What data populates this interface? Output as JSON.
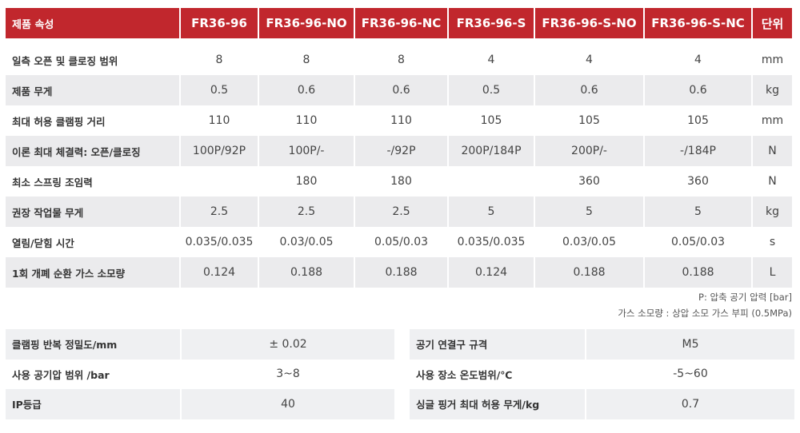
{
  "header": [
    "제품 속성",
    "FR36-96",
    "FR36-96-NO",
    "FR36-96-NC",
    "FR36-96-S",
    "FR36-96-S-NO",
    "FR36-96-S-NC",
    "단위"
  ],
  "rows": [
    [
      "일측 오픈 및 클로징 범위",
      "8",
      "8",
      "8",
      "4",
      "4",
      "4",
      "mm"
    ],
    [
      "제품 무게",
      "0.5",
      "0.6",
      "0.6",
      "0.5",
      "0.6",
      "0.6",
      "kg"
    ],
    [
      "최대 허용 클램핑 거리",
      "110",
      "110",
      "110",
      "105",
      "105",
      "105",
      "mm"
    ],
    [
      "이론 최대 체결력: 오픈/클로징",
      "100P/92P",
      "100P/-",
      "-/92P",
      "200P/184P",
      "200P/-",
      "-/184P",
      "N"
    ],
    [
      "최소 스프링 조임력",
      "",
      "180",
      "180",
      "",
      "360",
      "360",
      "N"
    ],
    [
      "권장 작업물 무게",
      "2.5",
      "2.5",
      "2.5",
      "5",
      "5",
      "5",
      "kg"
    ],
    [
      "열림/닫힘 시간",
      "0.035/0.035",
      "0.03/0.05",
      "0.05/0.03",
      "0.035/0.035",
      "0.03/0.05",
      "0.05/0.03",
      "s"
    ],
    [
      "1회 개폐 순환 가스 소모량",
      "0.124",
      "0.188",
      "0.188",
      "0.124",
      "0.188",
      "0.188",
      "L"
    ]
  ],
  "notes": [
    "P: 압축 공기 압력 [bar]",
    "가스 소모량 : 상압 소모 가스 부피 (0.5MPa)"
  ],
  "left_specs": [
    [
      "클램핑 반복 정밀도/mm",
      "± 0.02"
    ],
    [
      "사용 공기압 범위 /bar",
      "3~8"
    ],
    [
      "IP등급",
      "40"
    ]
  ],
  "right_specs": [
    [
      "공기 연결구 규격",
      "M5"
    ],
    [
      "사용 장소 온도범위/℃",
      "-5~60"
    ],
    [
      "싱글 핑거 최대 허용 무게/kg",
      "0.7"
    ]
  ],
  "colors": {
    "header_bg": "#c1272d",
    "stripe": "#ebebed"
  }
}
